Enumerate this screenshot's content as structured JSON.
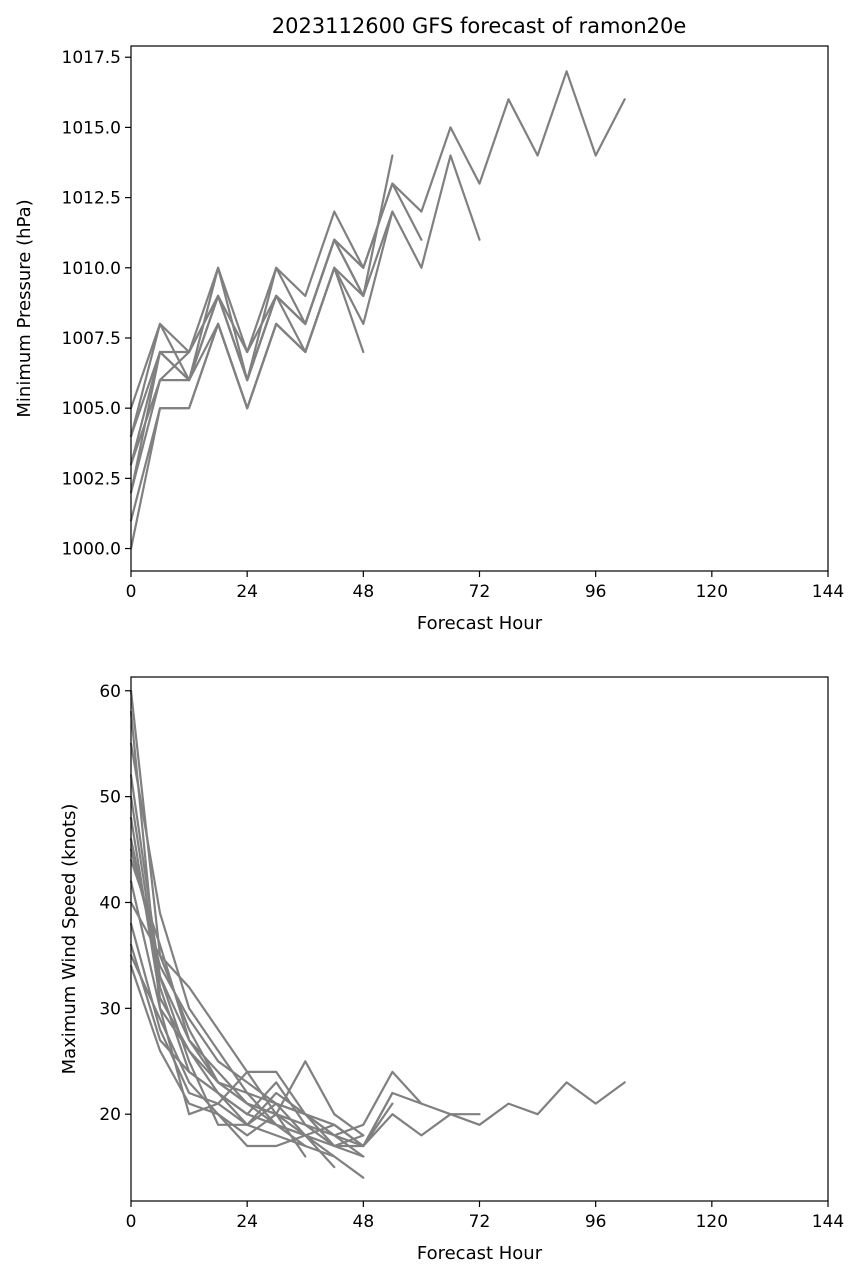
{
  "title": "2023112600 GFS forecast of ramon20e",
  "colors": {
    "line": "#808080",
    "axis": "#000000",
    "background": "#ffffff"
  },
  "chart_data": [
    {
      "type": "line",
      "xlabel": "Forecast Hour",
      "ylabel": "Minimum Pressure (hPa)",
      "xlim": [
        0,
        144
      ],
      "ylim": [
        999.2,
        1017.9
      ],
      "xticks": [
        0,
        24,
        48,
        72,
        96,
        120,
        144
      ],
      "yticks": [
        1000.0,
        1002.5,
        1005.0,
        1007.5,
        1010.0,
        1012.5,
        1015.0,
        1017.5
      ],
      "ytick_labels": [
        "1000.0",
        "1002.5",
        "1005.0",
        "1007.5",
        "1010.0",
        "1012.5",
        "1015.0",
        "1017.5"
      ],
      "grid": false,
      "series": [
        {
          "x": [
            0,
            6,
            12,
            18,
            24,
            30,
            36,
            42,
            48,
            54,
            60,
            66,
            72,
            78,
            84,
            90,
            96,
            102
          ],
          "y": [
            1005,
            1008,
            1007,
            1010,
            1007,
            1010,
            1009,
            1012,
            1010,
            1013,
            1012,
            1015,
            1013,
            1016,
            1014,
            1017,
            1014,
            1016
          ]
        },
        {
          "x": [
            0,
            6,
            12,
            18,
            24,
            30,
            36,
            42,
            48,
            54,
            60,
            66,
            72
          ],
          "y": [
            1004,
            1007,
            1007,
            1009,
            1006,
            1009,
            1008,
            1011,
            1009,
            1012,
            1010,
            1014,
            1011
          ]
        },
        {
          "x": [
            0,
            6,
            12,
            18,
            24,
            30,
            36,
            42,
            48,
            54,
            60
          ],
          "y": [
            1003,
            1007,
            1006,
            1009,
            1006,
            1009,
            1008,
            1011,
            1010,
            1013,
            1011
          ]
        },
        {
          "x": [
            0,
            6,
            12,
            18,
            24,
            30,
            36,
            42,
            48,
            54
          ],
          "y": [
            1002,
            1006,
            1006,
            1008,
            1005,
            1008,
            1007,
            1010,
            1009,
            1014
          ]
        },
        {
          "x": [
            0,
            6,
            12,
            18,
            24,
            30,
            36,
            42,
            48,
            54
          ],
          "y": [
            1001,
            1005,
            1005,
            1008,
            1005,
            1008,
            1007,
            1010,
            1008,
            1012
          ]
        },
        {
          "x": [
            0,
            6,
            12,
            18,
            24,
            30,
            36,
            42,
            48
          ],
          "y": [
            1000,
            1005,
            1005,
            1008,
            1005,
            1008,
            1007,
            1010,
            1007
          ]
        },
        {
          "x": [
            0,
            6,
            12,
            18,
            24,
            30,
            36,
            42,
            48
          ],
          "y": [
            1004,
            1008,
            1006,
            1010,
            1006,
            1010,
            1008,
            1011,
            1010
          ]
        },
        {
          "x": [
            0,
            6,
            12,
            18,
            24,
            30,
            36,
            42,
            48
          ],
          "y": [
            1003,
            1006,
            1007,
            1009,
            1007,
            1009,
            1008,
            1011,
            1009
          ]
        },
        {
          "x": [
            0,
            6,
            12,
            18,
            24,
            30,
            36,
            42
          ],
          "y": [
            1002,
            1007,
            1006,
            1009,
            1006,
            1009,
            1007,
            1010
          ]
        }
      ]
    },
    {
      "type": "line",
      "xlabel": "Forecast Hour",
      "ylabel": "Maximum Wind Speed (knots)",
      "xlim": [
        0,
        144
      ],
      "ylim": [
        11.8,
        61.3
      ],
      "xticks": [
        0,
        24,
        48,
        72,
        96,
        120,
        144
      ],
      "yticks": [
        20,
        30,
        40,
        50,
        60
      ],
      "ytick_labels": [
        "20",
        "30",
        "40",
        "50",
        "60"
      ],
      "grid": false,
      "series": [
        {
          "x": [
            0,
            6,
            12,
            18,
            24,
            30,
            36,
            42,
            48,
            54,
            60,
            66,
            72,
            78,
            84,
            90,
            96,
            102
          ],
          "y": [
            60,
            35,
            28,
            23,
            21,
            20,
            19,
            18,
            19,
            24,
            21,
            20,
            19,
            21,
            20,
            23,
            21,
            23
          ]
        },
        {
          "x": [
            0,
            6,
            12,
            18,
            24,
            30,
            36,
            42,
            48,
            54,
            60,
            66,
            72
          ],
          "y": [
            55,
            39,
            30,
            26,
            22,
            21,
            20,
            19,
            17,
            20,
            18,
            20,
            20
          ]
        },
        {
          "x": [
            0,
            6,
            12,
            18,
            24,
            30,
            36,
            42,
            48,
            54,
            60
          ],
          "y": [
            52,
            33,
            27,
            24,
            21,
            20,
            18,
            19,
            17,
            22,
            21
          ]
        },
        {
          "x": [
            0,
            6,
            12,
            18,
            24,
            30,
            36,
            42,
            48,
            54
          ],
          "y": [
            48,
            31,
            26,
            22,
            20,
            19,
            18,
            17,
            17,
            21
          ]
        },
        {
          "x": [
            0,
            6,
            12,
            18,
            24,
            30,
            36,
            42,
            48,
            54
          ],
          "y": [
            45,
            34,
            29,
            25,
            23,
            21,
            20,
            18,
            17,
            22
          ]
        },
        {
          "x": [
            0,
            6,
            12,
            18,
            24,
            30,
            36,
            42,
            48
          ],
          "y": [
            42,
            30,
            26,
            23,
            21,
            19,
            17,
            16,
            14
          ]
        },
        {
          "x": [
            0,
            6,
            12,
            18,
            24,
            30,
            36,
            42,
            48
          ],
          "y": [
            40,
            35,
            32,
            28,
            24,
            24,
            20,
            18,
            16
          ]
        },
        {
          "x": [
            0,
            6,
            12,
            18,
            24,
            30,
            36,
            42,
            48
          ],
          "y": [
            38,
            28,
            22,
            21,
            19,
            22,
            20,
            17,
            16
          ]
        },
        {
          "x": [
            0,
            6,
            12,
            18,
            24,
            30,
            36,
            42,
            48
          ],
          "y": [
            36,
            27,
            24,
            22,
            20,
            23,
            19,
            17,
            18
          ]
        },
        {
          "x": [
            0,
            6,
            12,
            18,
            24,
            30,
            36,
            42,
            48
          ],
          "y": [
            35,
            29,
            23,
            20,
            18,
            20,
            25,
            20,
            18
          ]
        },
        {
          "x": [
            0,
            6,
            12,
            18,
            24,
            30,
            36,
            42
          ],
          "y": [
            34,
            26,
            21,
            20,
            17,
            17,
            18,
            15
          ]
        },
        {
          "x": [
            0,
            6,
            12,
            18,
            24,
            30,
            36,
            42
          ],
          "y": [
            50,
            32,
            24,
            22,
            19,
            21,
            18,
            16
          ]
        },
        {
          "x": [
            0,
            6,
            12,
            18,
            24,
            30,
            36
          ],
          "y": [
            58,
            30,
            20,
            21,
            24,
            20,
            16
          ]
        },
        {
          "x": [
            0,
            6,
            12,
            18,
            24,
            30,
            36
          ],
          "y": [
            46,
            33,
            25,
            19,
            19,
            18,
            17
          ]
        },
        {
          "x": [
            0,
            6,
            12,
            18,
            24,
            30,
            36
          ],
          "y": [
            44,
            36,
            27,
            23,
            22,
            19,
            18
          ]
        }
      ]
    }
  ]
}
